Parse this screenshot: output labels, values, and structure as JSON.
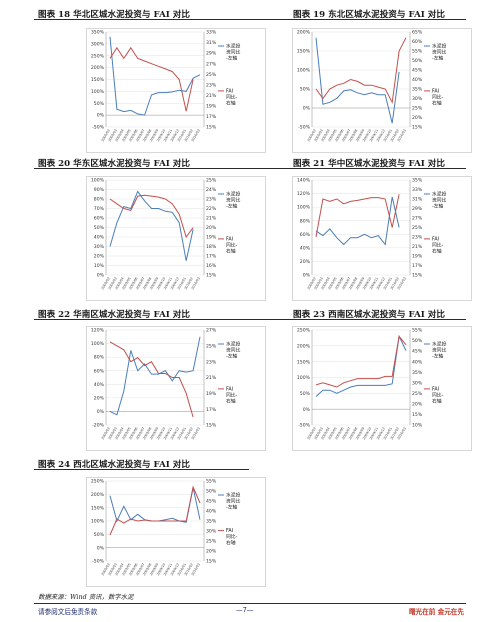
{
  "colors": {
    "blue": "#4a7ebb",
    "red": "#c0504d",
    "grid": "#e2e2e2"
  },
  "charts": [
    {
      "id": "c18",
      "title": "图表 18  华北区城水泥投资与 FAI 对比",
      "left_ticks": [
        "350%",
        "300%",
        "250%",
        "200%",
        "150%",
        "100%",
        "50%",
        "0%",
        "-50%"
      ],
      "right_ticks": [
        "33%",
        "31%",
        "29%",
        "27%",
        "25%",
        "23%",
        "21%",
        "19%",
        "17%",
        "15%"
      ],
      "x_labels": [
        "2009/02",
        "2009/03",
        "2009/04",
        "2009/05",
        "2009/06",
        "2009/07",
        "2009/08",
        "2009/09",
        "2009/10",
        "2009/11",
        "2009/12",
        "2010/01",
        "2010/02",
        "2010/03"
      ],
      "legend": [
        "水泥投资同比-左轴",
        "FAI同比-右轴"
      ]
    },
    {
      "id": "c19",
      "title": "图表 19  东北区城水泥投资与 FAI 对比",
      "left_ticks": [
        "200%",
        "150%",
        "100%",
        "50%",
        "0%",
        "-50%"
      ],
      "right_ticks": [
        "65%",
        "60%",
        "55%",
        "50%",
        "45%",
        "40%",
        "35%",
        "30%",
        "25%",
        "20%",
        "15%"
      ],
      "x_labels": [
        "2009/02",
        "2009/03",
        "2009/04",
        "2009/05",
        "2009/06",
        "2009/07",
        "2009/08",
        "2009/09",
        "2009/10",
        "2009/11",
        "2009/12",
        "2010/01",
        "2010/02",
        "2010/03"
      ],
      "legend": [
        "水泥投资同比-左轴",
        "FAI同比-右轴"
      ]
    },
    {
      "id": "c20",
      "title": "图表 20  华东区城水泥投资与 FAI 对比",
      "left_ticks": [
        "100%",
        "90%",
        "80%",
        "70%",
        "60%",
        "50%",
        "40%",
        "30%",
        "20%",
        "10%",
        "0%"
      ],
      "right_ticks": [
        "25%",
        "24%",
        "23%",
        "22%",
        "21%",
        "20%",
        "19%",
        "18%",
        "17%",
        "16%",
        "15%"
      ],
      "x_labels": [
        "2009/02",
        "2009/03",
        "2009/04",
        "2009/05",
        "2009/06",
        "2009/07",
        "2009/08",
        "2009/09",
        "2009/10",
        "2009/11",
        "2009/12",
        "2010/01",
        "2010/02",
        "2010/03"
      ],
      "legend": [
        "水泥投资同比-左轴",
        "FAI同比-右轴"
      ]
    },
    {
      "id": "c21",
      "title": "图表 21  华中区城水泥投资与 FAI 对比",
      "left_ticks": [
        "140%",
        "120%",
        "100%",
        "80%",
        "60%",
        "40%",
        "20%",
        "0%"
      ],
      "right_ticks": [
        "35%",
        "33%",
        "31%",
        "29%",
        "27%",
        "25%",
        "23%",
        "21%",
        "19%",
        "17%",
        "15%"
      ],
      "x_labels": [
        "2009/02",
        "2009/03",
        "2009/04",
        "2009/05",
        "2009/06",
        "2009/07",
        "2009/08",
        "2009/09",
        "2009/10",
        "2009/11",
        "2009/12",
        "2010/01",
        "2010/02",
        "2010/03"
      ],
      "legend": [
        "水泥投资同比-左轴",
        "FAI同比-右轴"
      ]
    },
    {
      "id": "c22",
      "title": "图表 22  华南区城水泥投资与 FAI 对比",
      "left_ticks": [
        "120%",
        "100%",
        "80%",
        "60%",
        "40%",
        "20%",
        "0%",
        "-20%"
      ],
      "right_ticks": [
        "27%",
        "25%",
        "23%",
        "21%",
        "19%",
        "17%",
        "15%"
      ],
      "x_labels": [
        "2009/02",
        "2009/03",
        "2009/04",
        "2009/05",
        "2009/06",
        "2009/07",
        "2009/08",
        "2009/09",
        "2009/10",
        "2009/11",
        "2009/12",
        "2010/01",
        "2010/02",
        "2010/03"
      ],
      "legend": [
        "水泥投资同比-左轴",
        "FAI同比-右轴"
      ]
    },
    {
      "id": "c23",
      "title": "图表 23  西南区城水泥投资与 FAI 对比",
      "left_ticks": [
        "250%",
        "200%",
        "150%",
        "100%",
        "50%",
        "0%",
        "-50%"
      ],
      "right_ticks": [
        "55%",
        "50%",
        "45%",
        "40%",
        "35%",
        "30%",
        "25%",
        "20%",
        "15%",
        "10%"
      ],
      "x_labels": [
        "2009/02",
        "2009/03",
        "2009/04",
        "2009/05",
        "2009/06",
        "2009/07",
        "2009/08",
        "2009/09",
        "2009/10",
        "2009/11",
        "2009/12",
        "2010/01",
        "2010/02",
        "2010/03"
      ],
      "legend": [
        "水泥投资同比-左轴",
        "FAI同比-右轴"
      ]
    },
    {
      "id": "c24",
      "title": "图表 24  西北区城水泥投资与 FAI 对比",
      "left_ticks": [
        "250%",
        "200%",
        "150%",
        "100%",
        "50%",
        "0%",
        "-50%"
      ],
      "right_ticks": [
        "55%",
        "50%",
        "45%",
        "40%",
        "35%",
        "30%",
        "25%",
        "20%",
        "15%"
      ],
      "x_labels": [
        "2009/02",
        "2009/03",
        "2009/04",
        "2009/05",
        "2009/06",
        "2009/07",
        "2009/08",
        "2009/09",
        "2009/10",
        "2009/11",
        "2009/12",
        "2010/01",
        "2010/02",
        "2010/03"
      ],
      "legend": [
        "水泥投资同比-左轴",
        "FAI同比-右轴"
      ]
    }
  ],
  "chart_data": [
    {
      "type": "line",
      "title": "图表 18  华北区城水泥投资与 FAI 对比",
      "ylim": [
        -50,
        350
      ],
      "y2lim": [
        15,
        33
      ],
      "series": [
        {
          "name": "水泥投资同比-左轴",
          "axis": "left",
          "values": [
            330,
            25,
            15,
            20,
            5,
            0,
            85,
            95,
            95,
            98,
            105,
            100,
            155,
            170
          ]
        },
        {
          "name": "FAI同比-右轴",
          "axis": "right",
          "values": [
            28,
            30,
            28,
            30,
            28,
            27.5,
            27,
            26.5,
            26,
            25.5,
            24,
            18,
            24,
            null
          ]
        }
      ]
    },
    {
      "type": "line",
      "title": "图表 19  东北区城水泥投资与 FAI 对比",
      "ylim": [
        -50,
        200
      ],
      "y2lim": [
        15,
        65
      ],
      "series": [
        {
          "name": "水泥投资同比-左轴",
          "axis": "left",
          "values": [
            185,
            10,
            15,
            25,
            45,
            48,
            40,
            35,
            40,
            35,
            35,
            -40,
            95,
            null
          ]
        },
        {
          "name": "FAI同比-右轴",
          "axis": "right",
          "values": [
            35,
            30,
            35,
            37,
            38,
            40,
            39,
            37,
            37,
            36,
            35,
            28,
            55,
            62
          ]
        }
      ]
    },
    {
      "type": "line",
      "title": "图表 20  华东区城水泥投资与 FAI 对比",
      "ylim": [
        0,
        100
      ],
      "y2lim": [
        15,
        25
      ],
      "series": [
        {
          "name": "水泥投资同比-左轴",
          "axis": "left",
          "values": [
            30,
            55,
            72,
            70,
            88,
            78,
            70,
            70,
            67,
            66,
            55,
            15,
            48,
            null
          ]
        },
        {
          "name": "FAI同比-右轴",
          "axis": "right",
          "values": [
            23,
            22.5,
            22,
            21.8,
            23.3,
            23.4,
            23.3,
            23.2,
            23,
            22.5,
            21.4,
            19,
            20,
            null
          ]
        }
      ]
    },
    {
      "type": "line",
      "title": "图表 21  华中区城水泥投资与 FAI 对比",
      "ylim": [
        0,
        140
      ],
      "y2lim": [
        15,
        35
      ],
      "series": [
        {
          "name": "水泥投资同比-左轴",
          "axis": "left",
          "values": [
            65,
            58,
            68,
            55,
            45,
            55,
            55,
            60,
            55,
            58,
            45,
            115,
            70,
            null
          ]
        },
        {
          "name": "FAI同比-右轴",
          "axis": "right",
          "values": [
            23,
            31,
            30.5,
            31,
            30,
            30.5,
            30.7,
            31,
            31.3,
            31.3,
            31,
            25,
            32,
            null
          ]
        }
      ]
    },
    {
      "type": "line",
      "title": "图表 22  华南区城水泥投资与 FAI 对比",
      "ylim": [
        -20,
        120
      ],
      "y2lim": [
        15,
        27
      ],
      "series": [
        {
          "name": "水泥投资同比-左轴",
          "axis": "left",
          "values": [
            0,
            -5,
            30,
            90,
            60,
            70,
            55,
            55,
            60,
            45,
            60,
            58,
            60,
            110
          ]
        },
        {
          "name": "FAI同比-右轴",
          "axis": "right",
          "values": [
            25.5,
            25,
            24.5,
            23,
            23.5,
            22.5,
            23,
            21.5,
            21.5,
            21,
            21,
            19,
            16,
            null
          ]
        }
      ]
    },
    {
      "type": "line",
      "title": "图表 23  西南区城水泥投资与 FAI 对比",
      "ylim": [
        -50,
        250
      ],
      "y2lim": [
        10,
        55
      ],
      "series": [
        {
          "name": "水泥投资同比-左轴",
          "axis": "left",
          "values": [
            40,
            60,
            60,
            50,
            60,
            70,
            75,
            75,
            75,
            75,
            75,
            80,
            230,
            185
          ]
        },
        {
          "name": "FAI同比-右轴",
          "axis": "right",
          "values": [
            29,
            30,
            29,
            28,
            30,
            31,
            32,
            32,
            32,
            32,
            33,
            33,
            52,
            48
          ]
        }
      ]
    },
    {
      "type": "line",
      "title": "图表 24  西北区城水泥投资与 FAI 对比",
      "ylim": [
        -50,
        250
      ],
      "y2lim": [
        15,
        55
      ],
      "series": [
        {
          "name": "水泥投资同比-左轴",
          "axis": "left",
          "values": [
            195,
            100,
            155,
            105,
            125,
            105,
            100,
            100,
            105,
            110,
            100,
            95,
            225,
            105
          ]
        },
        {
          "name": "FAI同比-右轴",
          "axis": "right",
          "values": [
            28,
            36,
            34,
            36,
            35,
            35.5,
            35,
            35,
            35,
            35,
            35,
            35,
            52,
            44
          ]
        }
      ]
    }
  ],
  "footer": {
    "source": "数据来源：Wind 资讯，数字水泥",
    "left": "请参阅文后免责条款",
    "page": "—7—",
    "right": "曙光在前  金元在先"
  }
}
